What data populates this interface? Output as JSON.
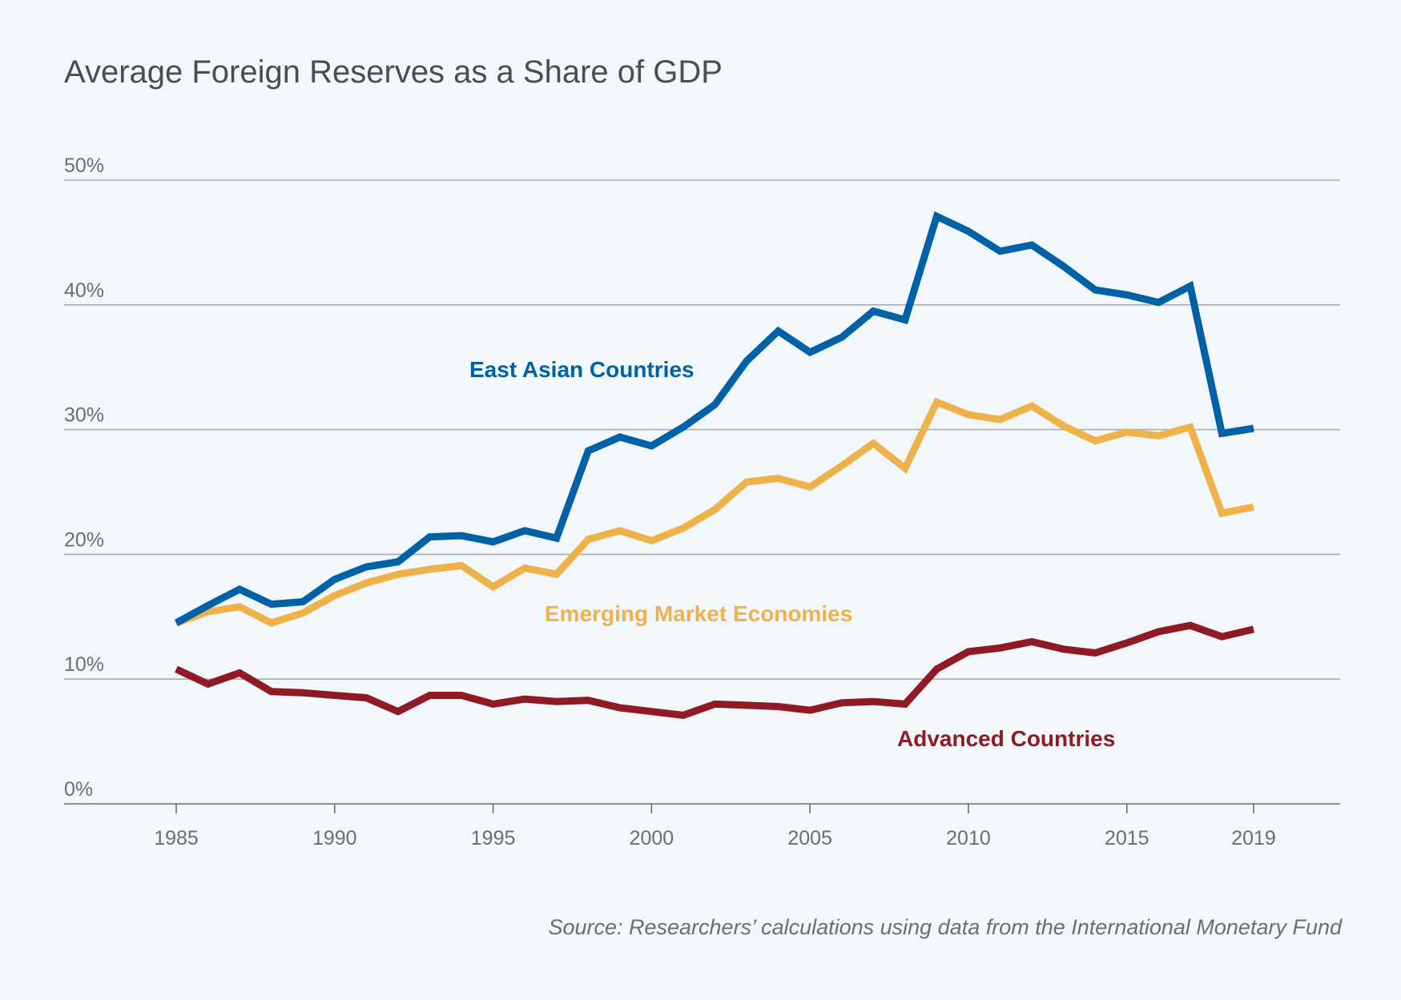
{
  "chart_data": {
    "type": "line",
    "title": "Average Foreign Reserves as a Share of GDP",
    "xlabel": "",
    "ylabel": "",
    "ylim": [
      0,
      50
    ],
    "xlim": [
      1985,
      2019
    ],
    "grid": true,
    "yticks": [
      "0%",
      "10%",
      "20%",
      "30%",
      "40%",
      "50%"
    ],
    "ytick_values": [
      0,
      10,
      20,
      30,
      40,
      50
    ],
    "xticks": [
      "1985",
      "1990",
      "1995",
      "2000",
      "2005",
      "2010",
      "2015",
      "2019"
    ],
    "xtick_values": [
      1985,
      1990,
      1995,
      2000,
      2005,
      2010,
      2015,
      2019
    ],
    "x": [
      1985,
      1986,
      1987,
      1988,
      1989,
      1990,
      1991,
      1992,
      1993,
      1994,
      1995,
      1996,
      1997,
      1998,
      1999,
      2000,
      2001,
      2002,
      2003,
      2004,
      2005,
      2006,
      2007,
      2008,
      2009,
      2010,
      2011,
      2012,
      2013,
      2014,
      2015,
      2016,
      2017,
      2018,
      2019
    ],
    "series": [
      {
        "name": "East Asian Countries",
        "color": "#0061a6",
        "values": [
          14.5,
          15.9,
          17.2,
          16.0,
          16.2,
          18.0,
          19.0,
          19.4,
          21.4,
          21.5,
          21.0,
          21.9,
          21.3,
          28.3,
          29.4,
          28.7,
          30.2,
          32.0,
          35.5,
          37.9,
          36.2,
          37.4,
          39.5,
          38.8,
          47.1,
          45.9,
          44.3,
          44.8,
          43.1,
          41.2,
          40.8,
          40.2,
          41.5,
          29.7,
          30.1
        ]
      },
      {
        "name": "Emerging Market Economies",
        "color": "#efb24b",
        "values": [
          14.5,
          15.4,
          15.8,
          14.5,
          15.3,
          16.7,
          17.7,
          18.4,
          18.8,
          19.1,
          17.4,
          18.9,
          18.4,
          21.2,
          21.9,
          21.1,
          22.1,
          23.6,
          25.8,
          26.1,
          25.4,
          27.1,
          28.9,
          26.9,
          32.2,
          31.2,
          30.8,
          31.9,
          30.3,
          29.1,
          29.8,
          29.5,
          30.2,
          23.3,
          23.8
        ]
      },
      {
        "name": "Advanced Countries",
        "color": "#8f1a23",
        "values": [
          10.8,
          9.6,
          10.5,
          9.0,
          8.9,
          8.7,
          8.5,
          7.4,
          8.7,
          8.7,
          8.0,
          8.4,
          8.2,
          8.3,
          7.7,
          7.4,
          7.1,
          8.0,
          7.9,
          7.8,
          7.5,
          8.1,
          8.2,
          8.0,
          10.8,
          12.2,
          12.5,
          13.0,
          12.4,
          12.1,
          12.9,
          13.8,
          14.3,
          13.4,
          14.0
        ]
      }
    ],
    "source": "Source: Researchers’ calculations using data from the International Monetary Fund"
  }
}
